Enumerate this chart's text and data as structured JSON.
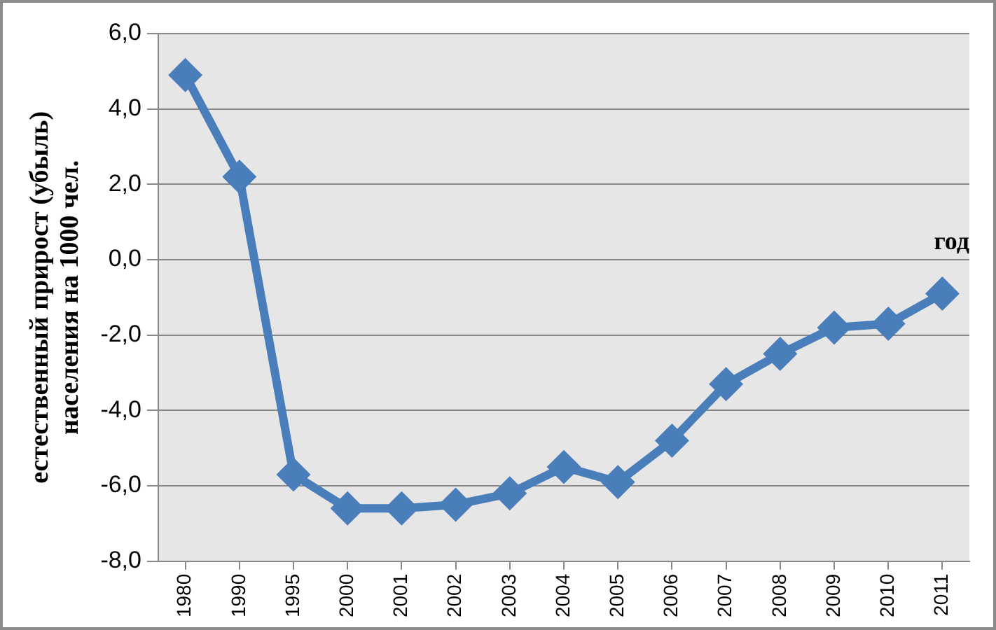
{
  "chart_data": {
    "type": "line",
    "xlabel": "год",
    "ylabel": "естественный прирост (убыль)\nнаселения на 1000 чел.",
    "categories": [
      "1980",
      "1990",
      "1995",
      "2000",
      "2001",
      "2002",
      "2003",
      "2004",
      "2005",
      "2006",
      "2007",
      "2008",
      "2009",
      "2010",
      "2011"
    ],
    "series": [
      {
        "color": "#4a7ebb",
        "values": [
          4.9,
          2.2,
          -5.7,
          -6.6,
          -6.6,
          -6.5,
          -6.2,
          -5.5,
          -5.9,
          -4.8,
          -3.3,
          -2.5,
          -1.8,
          -1.7,
          -0.9
        ]
      }
    ],
    "ylim": [
      -8,
      6
    ],
    "yticks": [
      {
        "value": -8,
        "label": "-8,0"
      },
      {
        "value": -6,
        "label": "-6,0"
      },
      {
        "value": -4,
        "label": "-4,0"
      },
      {
        "value": -2,
        "label": "-2,0"
      },
      {
        "value": 0,
        "label": "0,0"
      },
      {
        "value": 2,
        "label": "2,0"
      },
      {
        "value": 4,
        "label": "4,0"
      },
      {
        "value": 6,
        "label": "6,0"
      }
    ],
    "grid": "y",
    "legend": false,
    "marker": "diamond",
    "line_style": "solid"
  }
}
